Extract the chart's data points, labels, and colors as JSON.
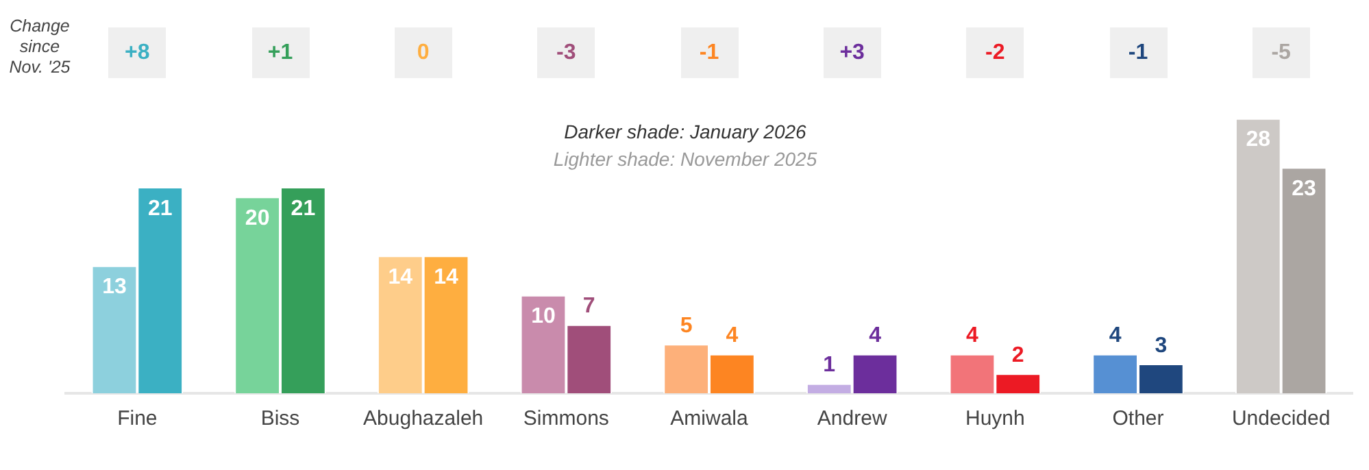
{
  "chart_data": {
    "type": "bar",
    "categories": [
      "Fine",
      "Biss",
      "Abughazaleh",
      "Simmons",
      "Amiwala",
      "Andrew",
      "Huynh",
      "Other",
      "Undecided"
    ],
    "series": [
      {
        "colors": [
          "#8dd0dd",
          "#77d39a",
          "#fecd8a",
          "#c98bac",
          "#fdb07a",
          "#c3ade3",
          "#f27479",
          "#5690d3",
          "#cdc9c6"
        ],
        "values": [
          13,
          20,
          14,
          10,
          5,
          1,
          4,
          4,
          28
        ]
      },
      {
        "colors": [
          "#3bb0c3",
          "#359f5a",
          "#feae40",
          "#a04e7a",
          "#fd8522",
          "#6c2e9c",
          "#ec1a24",
          "#1f477e",
          "#aba6a2"
        ],
        "values": [
          21,
          21,
          14,
          7,
          4,
          4,
          2,
          3,
          23
        ]
      }
    ],
    "data_labels": true,
    "grid": false,
    "legend": false,
    "tick_labels": "x",
    "annotations": [
      "Change since Nov. '25",
      "+8",
      "+1",
      "0",
      "-3",
      "-1",
      "+3",
      "-2",
      "-1",
      "-5",
      "Darker shade: January 2026",
      "Lighter shade: November 2025"
    ]
  }
}
